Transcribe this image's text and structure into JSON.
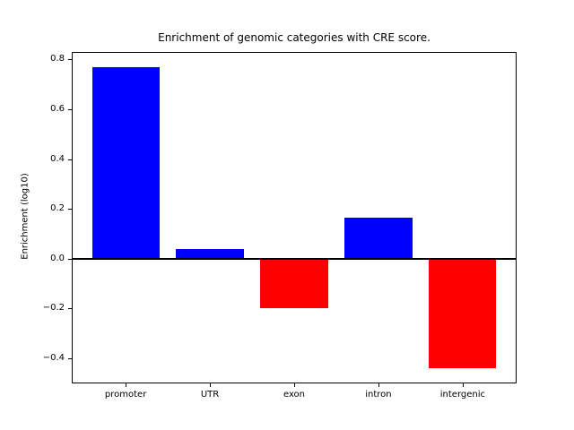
{
  "chart_data": {
    "type": "bar",
    "title": "Enrichment of genomic categories with CRE score.",
    "xlabel": "",
    "ylabel": "Enrichment (log10)",
    "categories": [
      "promoter",
      "UTR",
      "exon",
      "intron",
      "intergenic"
    ],
    "values": [
      0.77,
      0.04,
      -0.2,
      0.165,
      -0.44
    ],
    "positive_color": "#0000ff",
    "negative_color": "#ff0000",
    "axis_color": "#000000",
    "background_color": "#ffffff",
    "ylim": [
      -0.5005,
      0.8305
    ],
    "ytick_values": [
      0.8,
      0.6,
      0.4,
      0.2,
      0.0,
      -0.2,
      -0.4
    ],
    "ytick_labels": [
      "0.8",
      "0.6",
      "0.4",
      "0.2",
      "0.0",
      "−0.2",
      "−0.4"
    ],
    "bar_width_fraction": 0.8,
    "x_edge_margin": 0.64,
    "zero_line": true,
    "grid": false,
    "legend": false
  }
}
